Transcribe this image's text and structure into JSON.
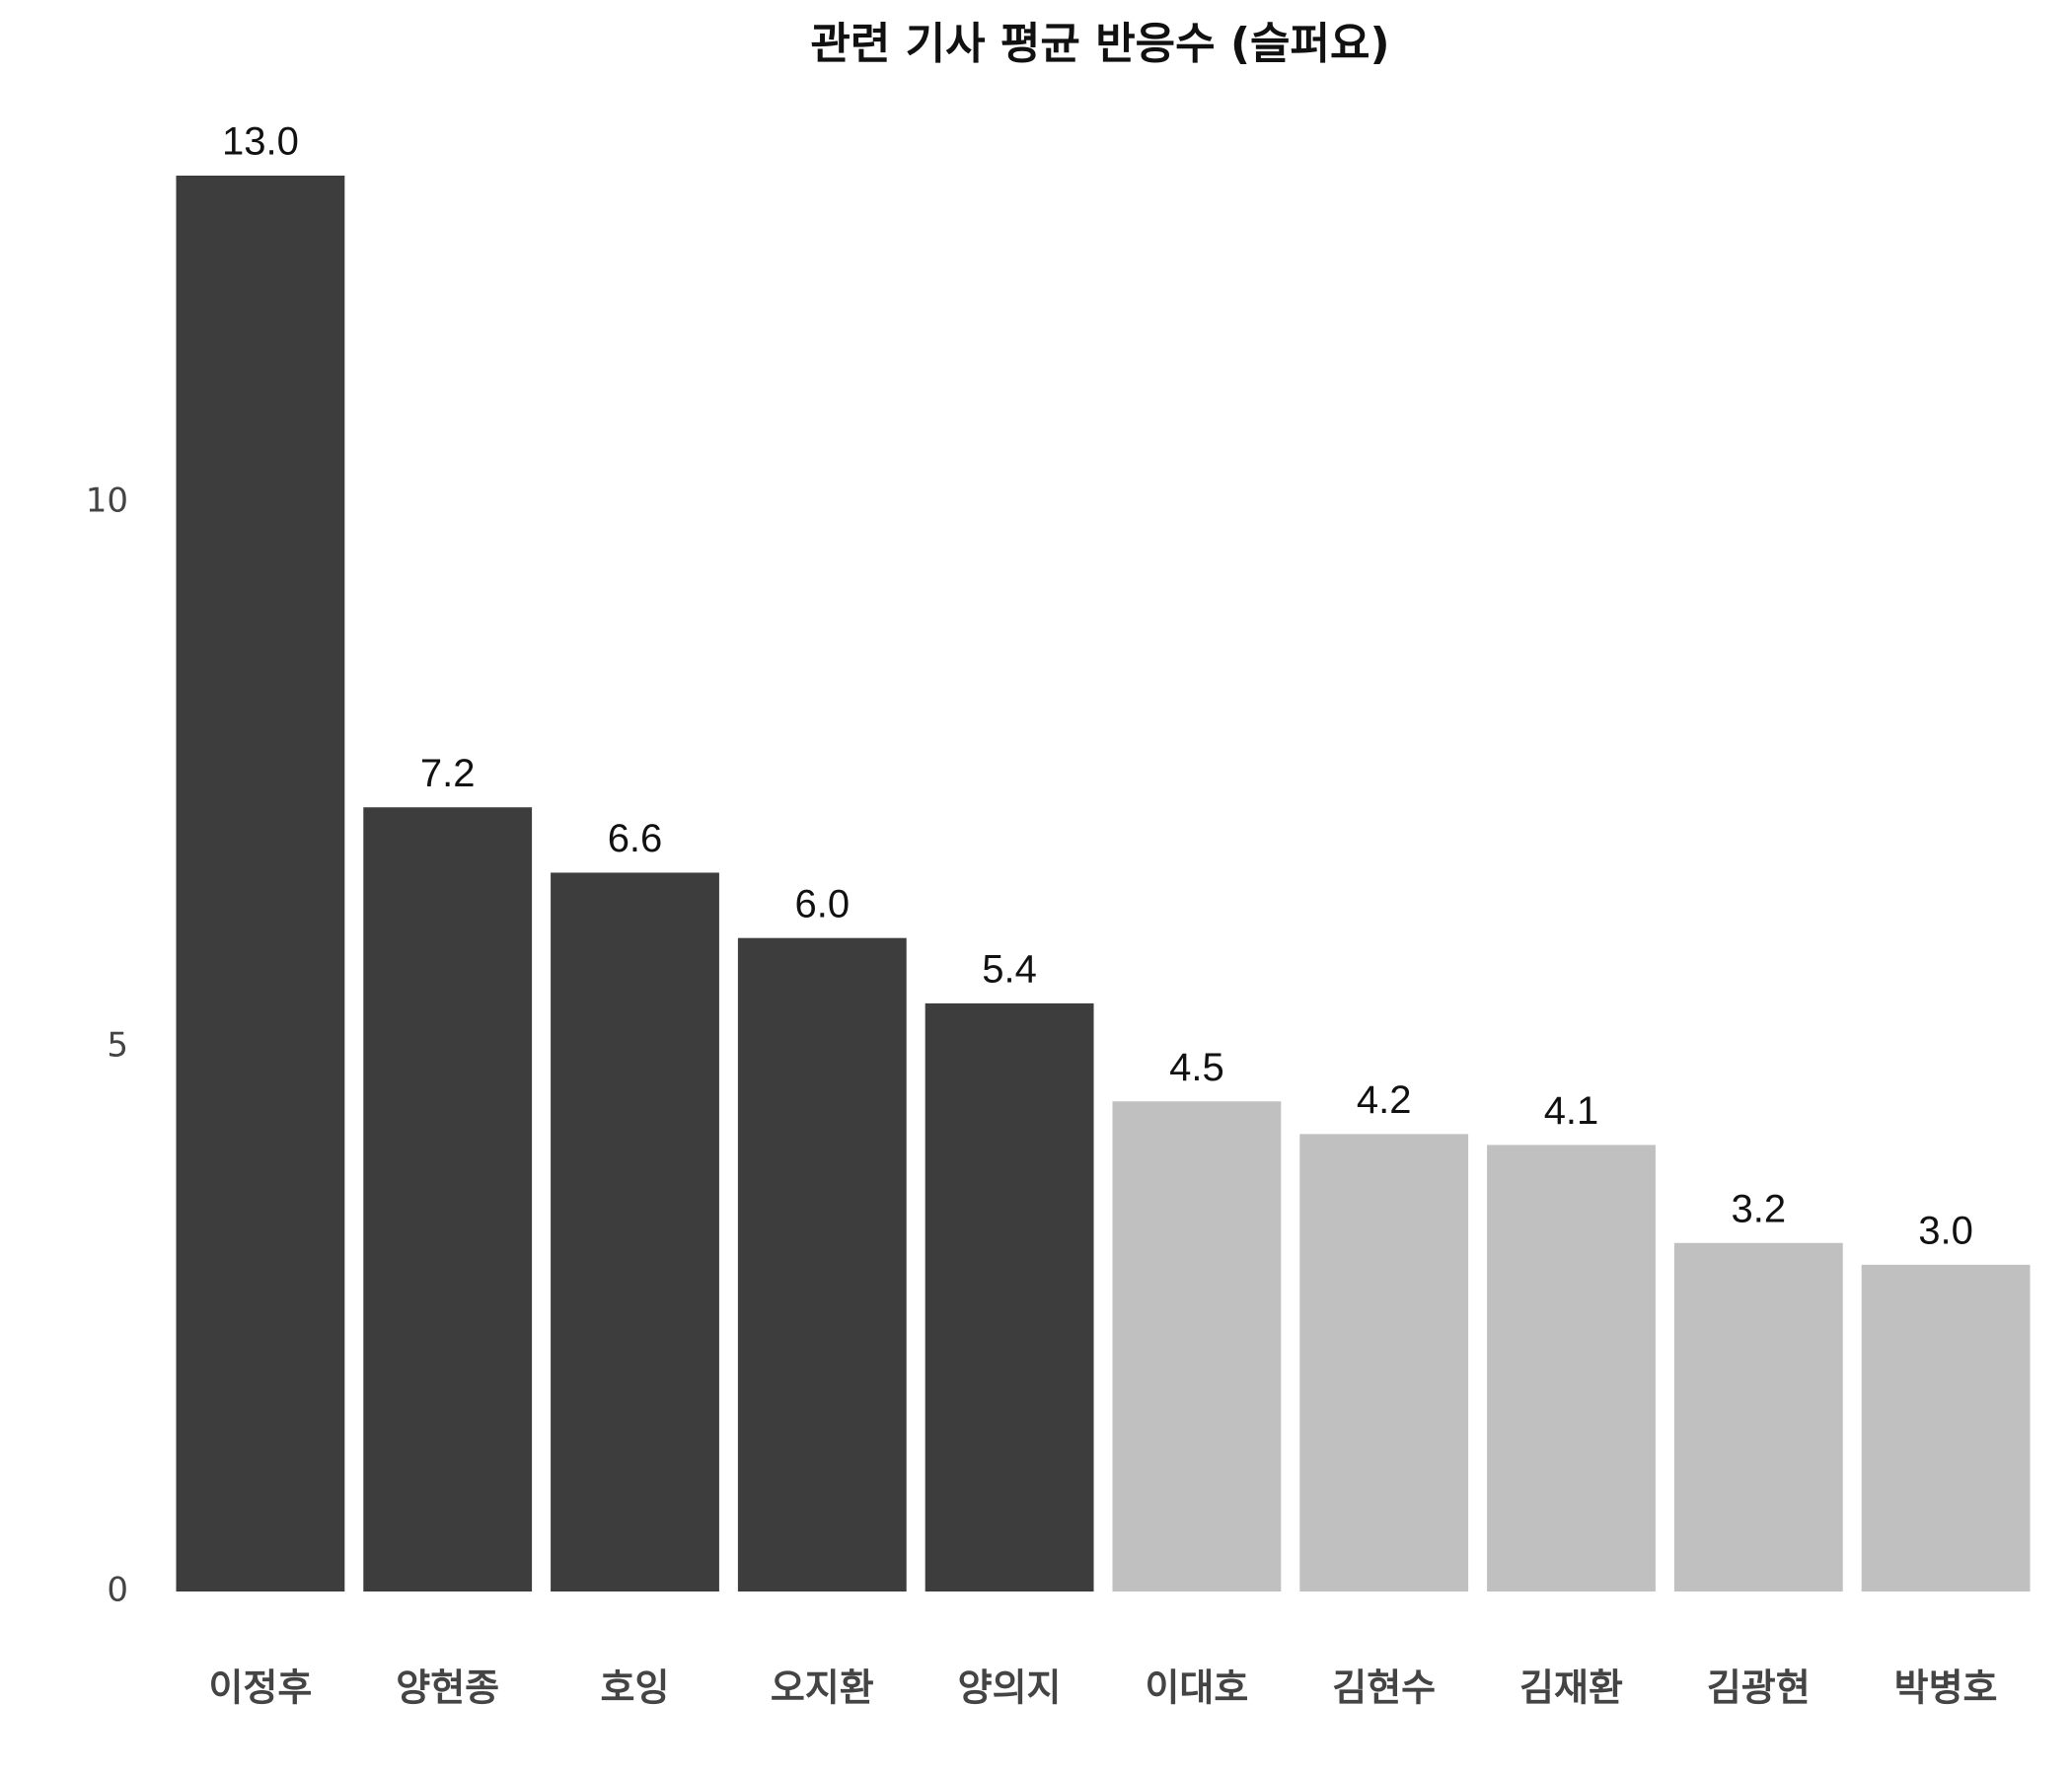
{
  "chart_data": {
    "type": "bar",
    "title": "관련 기사 평균 반응수 (슬퍼요)",
    "categories": [
      "이정후",
      "양현종",
      "호잉",
      "오지환",
      "양의지",
      "이대호",
      "김현수",
      "김재환",
      "김광현",
      "박병호"
    ],
    "values": [
      13,
      7.2,
      6.6,
      6,
      5.4,
      4.5,
      4.2,
      4.1,
      3.2,
      3
    ],
    "value_labels": [
      "13.0",
      "7.2",
      "6.6",
      "6.0",
      "5.4",
      "4.5",
      "4.2",
      "4.1",
      "3.2",
      "3.0"
    ],
    "colors": [
      "#3d3d3d",
      "#3d3d3d",
      "#3d3d3d",
      "#3d3d3d",
      "#3d3d3d",
      "#c0c0c0",
      "#c0c0c0",
      "#c0c0c0",
      "#c0c0c0",
      "#c0c0c0"
    ],
    "ylim": [
      0,
      13
    ],
    "yticks": [
      0,
      5,
      10
    ],
    "grid": false
  }
}
